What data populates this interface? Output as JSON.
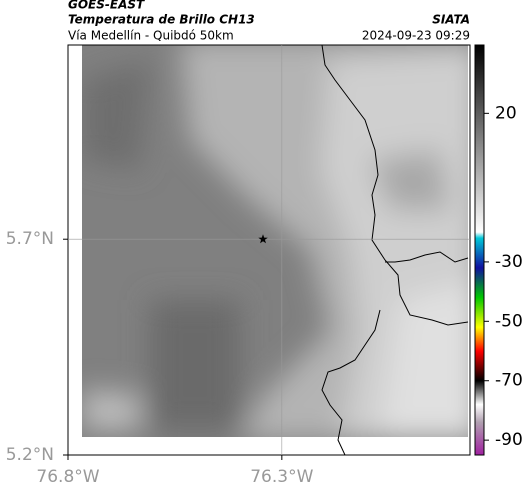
{
  "header": {
    "satellite": "GOES-EAST",
    "title": "Temperatura de Brillo CH13",
    "subtitle": "Vía Medellín - Quibdó 50km",
    "source": "SIATA",
    "datetime": "2024-09-23 09:29"
  },
  "map": {
    "xlim": [
      -76.8,
      -75.86
    ],
    "ylim": [
      5.2,
      6.15
    ],
    "xticks": [
      {
        "value": -76.8,
        "label": "76.8°W"
      },
      {
        "value": -76.3,
        "label": "76.3°W"
      }
    ],
    "yticks": [
      {
        "value": 5.2,
        "label": "5.2°N"
      },
      {
        "value": 5.7,
        "label": "5.7°N"
      }
    ],
    "grid": true,
    "marker": {
      "lon": -76.344,
      "lat": 5.7,
      "color": "#000"
    }
  },
  "colorbar": {
    "clim": [
      -95,
      43
    ],
    "ticks": [
      20,
      -30,
      -50,
      -70,
      -90
    ],
    "stops": [
      {
        "value": 43,
        "color": "#000000"
      },
      {
        "value": -20,
        "color": "#ffffff"
      },
      {
        "value": -22,
        "color": "#00c8d8"
      },
      {
        "value": -32,
        "color": "#1010a0"
      },
      {
        "value": -42,
        "color": "#00c800"
      },
      {
        "value": -52,
        "color": "#ffff00"
      },
      {
        "value": -60,
        "color": "#ff0000"
      },
      {
        "value": -70,
        "color": "#000000"
      },
      {
        "value": -78,
        "color": "#ffffff"
      },
      {
        "value": -84,
        "color": "#b0a0b0"
      },
      {
        "value": -95,
        "color": "#a020a0"
      }
    ]
  }
}
